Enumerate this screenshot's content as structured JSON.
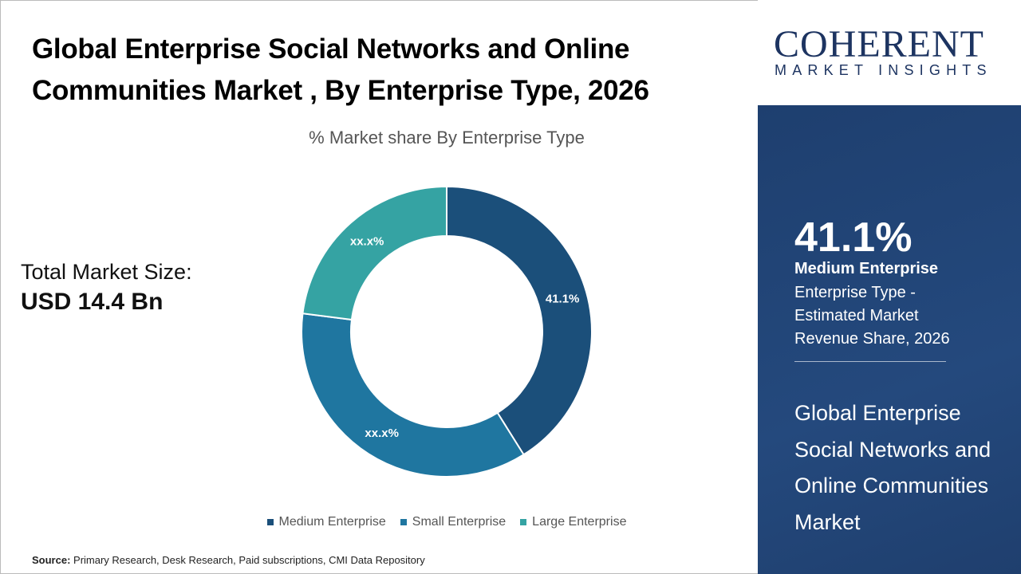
{
  "title": "Global Enterprise Social Networks and Online Communities Market , By Enterprise Type, 2026",
  "total_market": {
    "label": "Total Market Size:",
    "value": "USD 14.4 Bn"
  },
  "source": {
    "label": "Source:",
    "text": " Primary Research, Desk Research, Paid subscriptions, CMI Data Repository"
  },
  "logo": {
    "line1": "COHERENT",
    "line2": "MARKET INSIGHTS"
  },
  "panel": {
    "percent": "41.1%",
    "segment": "Medium Enterprise",
    "description": "Enterprise Type - Estimated Market Revenue Share, 2026",
    "market_name": "Global Enterprise Social Networks and Online Communities Market"
  },
  "colors": {
    "panel": "#1f3f6e",
    "medium": "#1b4f7a",
    "small": "#1f76a0",
    "large": "#35a3a3"
  },
  "chart_data": {
    "type": "pie",
    "donut": true,
    "title": "% Market share By Enterprise Type",
    "categories": [
      "Medium Enterprise",
      "Small Enterprise",
      "Large Enterprise"
    ],
    "values": [
      41.1,
      35.9,
      23.0
    ],
    "data_labels": [
      "41.1%",
      "xx.x%",
      "xx.x%"
    ],
    "colors": [
      "#1b4f7a",
      "#1f76a0",
      "#35a3a3"
    ],
    "legend": "bottom"
  }
}
